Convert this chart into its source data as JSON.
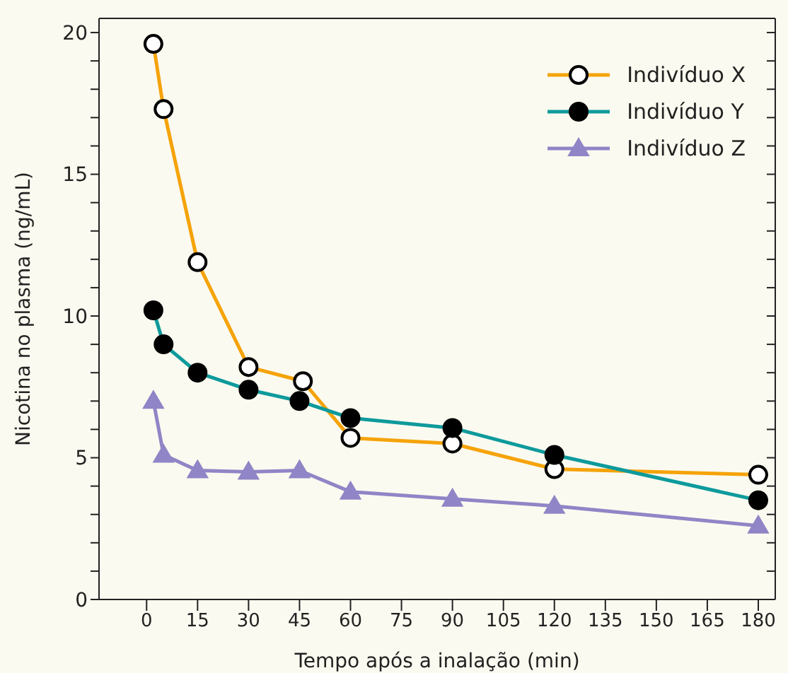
{
  "chart_data": {
    "type": "line",
    "xlabel": "Tempo após a inalação (min)",
    "ylabel": "Nicotina no plasma (ng/mL)",
    "xlim": [
      -14,
      185
    ],
    "xticks": [
      0,
      15,
      30,
      45,
      60,
      75,
      90,
      105,
      120,
      135,
      150,
      165,
      180
    ],
    "ylim": [
      0,
      20.5
    ],
    "yticks": [
      0,
      {
        "value": 1,
        "label": null
      },
      {
        "value": 2,
        "label": null
      },
      {
        "value": 3,
        "label": null
      },
      {
        "value": 4,
        "label": null
      },
      5,
      {
        "value": 6,
        "label": null
      },
      {
        "value": 7,
        "label": null
      },
      {
        "value": 8,
        "label": null
      },
      {
        "value": 9,
        "label": null
      },
      10,
      {
        "value": 11,
        "label": null
      },
      {
        "value": 12,
        "label": null
      },
      {
        "value": 13,
        "label": null
      },
      {
        "value": 14,
        "label": null
      },
      15,
      {
        "value": 16,
        "label": null
      },
      {
        "value": 17,
        "label": null
      },
      {
        "value": 18,
        "label": null
      },
      {
        "value": 19,
        "label": null
      },
      20
    ],
    "legend": "top right",
    "series": [
      {
        "name": "Indivíduo X",
        "color": "#f5a30a",
        "marker": "circle",
        "x": [
          2,
          5,
          15,
          30,
          46,
          60,
          90,
          120,
          180
        ],
        "values": [
          19.6,
          17.3,
          11.9,
          8.2,
          7.7,
          5.7,
          5.5,
          4.6,
          4.4
        ]
      },
      {
        "name": "Indivíduo Y",
        "color": "#0e9a9c",
        "marker": "circle",
        "x": [
          2,
          5,
          15,
          30,
          45,
          60,
          90,
          120,
          180
        ],
        "values": [
          10.2,
          9.0,
          8.0,
          7.4,
          7.0,
          6.4,
          6.05,
          5.1,
          3.5
        ]
      },
      {
        "name": "Indivíduo Z",
        "color": "#9085c6",
        "marker": "triangle",
        "x": [
          2,
          5,
          15,
          30,
          45,
          60,
          90,
          120,
          180
        ],
        "values": [
          7.0,
          5.1,
          4.55,
          4.5,
          4.55,
          3.8,
          3.55,
          3.3,
          2.6
        ]
      }
    ]
  }
}
